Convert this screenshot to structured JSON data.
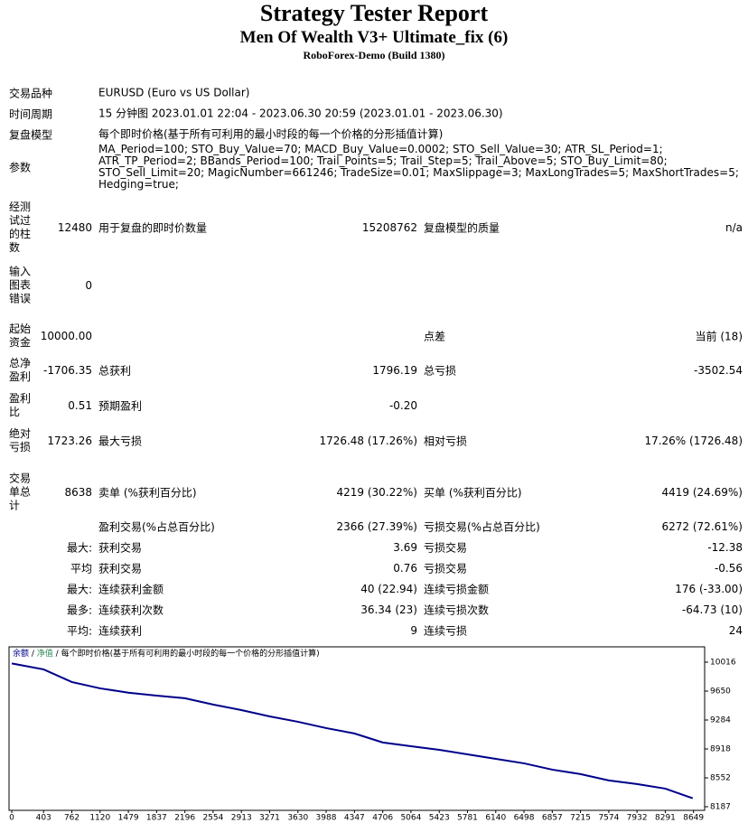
{
  "header": {
    "title": "Strategy Tester Report",
    "subtitle": "Men Of Wealth V3+ Ultimate_fix (6)",
    "build": "RoboForex-Demo (Build 1380)"
  },
  "info": [
    {
      "label": "交易品种",
      "value": "EURUSD (Euro vs US Dollar)"
    },
    {
      "label": "时间周期",
      "value": "15 分钟图 2023.01.01 22:04 - 2023.06.30 20:59 (2023.01.01 - 2023.06.30)"
    },
    {
      "label": "复盘模型",
      "value": "每个即时价格(基于所有可利用的最小时段的每一个价格的分形插值计算)"
    },
    {
      "label": "参数",
      "value": "MA_Period=100; STO_Buy_Value=70; MACD_Buy_Value=0.0002; STO_Sell_Value=30; ATR_SL_Period=1; ATR_TP_Period=2; BBands_Period=100; Trail_Points=5; Trail_Step=5; Trail_Above=5; STO_Buy_Limit=80; STO_Sell_Limit=20; MagicNumber=661246; TradeSize=0.01; MaxSlippage=3; MaxLongTrades=5; MaxShortTrades=5; Hedging=true;"
    }
  ],
  "stats": [
    {
      "label1": "经测试过的柱数",
      "value1": "12480",
      "label2": "用于复盘的即时价数量",
      "value2": "15208762",
      "label3": "复盘模型的质量",
      "value3": "n/a"
    },
    {
      "label1": "输入图表错误",
      "value1": "0"
    },
    {
      "label1": "起始资金",
      "value1": "10000.00",
      "label3": "点差",
      "value3": "当前 (18)"
    },
    {
      "label1": "总净盈利",
      "value1": "-1706.35",
      "label2": "总获利",
      "value2": "1796.19",
      "label3": "总亏损",
      "value3": "-3502.54"
    },
    {
      "label1": "盈利比",
      "value1": "0.51",
      "label2": "预期盈利",
      "value2": "-0.20"
    },
    {
      "label1": "绝对亏损",
      "value1": "1723.26",
      "label2": "最大亏损",
      "value2": "1726.48 (17.26%)",
      "label3": "相对亏损",
      "value3": "17.26% (1726.48)"
    },
    {
      "label1": "交易单总计",
      "value1": "8638",
      "label2": "卖单 (%获利百分比)",
      "value2": "4219 (30.22%)",
      "label3": "买单 (%获利百分比)",
      "value3": "4419 (24.69%)"
    },
    {
      "label2": "盈利交易(%占总百分比)",
      "value2": "2366 (27.39%)",
      "label3": "亏损交易(%占总百分比)",
      "value3": "6272 (72.61%)"
    },
    {
      "prefix": "最大:",
      "label2": "获利交易",
      "value2": "3.69",
      "label3": "亏损交易",
      "value3": "-12.38"
    },
    {
      "prefix": "平均",
      "label2": "获利交易",
      "value2": "0.76",
      "label3": "亏损交易",
      "value3": "-0.56"
    },
    {
      "prefix": "最大:",
      "label2": "连续获利金额",
      "value2": "40 (22.94)",
      "label3": "连续亏损金额",
      "value3": "176 (-33.00)"
    },
    {
      "prefix": "最多:",
      "label2": "连续获利次数",
      "value2": "36.34 (23)",
      "label3": "连续亏损次数",
      "value3": "-64.73 (10)"
    },
    {
      "prefix": "平均:",
      "label2": "连续获利",
      "value2": "9",
      "label3": "连续亏损",
      "value3": "24"
    }
  ],
  "chart_data": {
    "type": "line",
    "title": "每个即时价格(基于所有可利用的最小时段的每一个价格的分形插值计算)",
    "x": [
      0,
      403,
      762,
      1120,
      1479,
      1837,
      2196,
      2554,
      2913,
      3271,
      3630,
      3988,
      4347,
      4706,
      5064,
      5423,
      5781,
      6140,
      6498,
      6857,
      7215,
      7574,
      7932,
      8291,
      8638
    ],
    "series": [
      {
        "name": "余额",
        "color": "#00008b",
        "values": [
          10000,
          9925,
          9765,
          9685,
          9630,
          9593,
          9560,
          9480,
          9410,
          9330,
          9262,
          9182,
          9114,
          9000,
          8953,
          8907,
          8850,
          8793,
          8736,
          8656,
          8600,
          8520,
          8474,
          8416,
          8294
        ]
      },
      {
        "name": "净值",
        "color": "#2e8b57",
        "values": [
          9995,
          9920,
          9760,
          9682,
          9626,
          9590,
          9556,
          9477,
          9406,
          9327,
          9258,
          9178,
          9110,
          8995,
          8948,
          8904,
          8846,
          8790,
          8733,
          8652,
          8597,
          8516,
          8470,
          8412,
          8290
        ]
      }
    ],
    "xlim": [
      -35,
      8790
    ],
    "ylim": [
      8141,
      10210
    ],
    "xticks": [
      0,
      403,
      762,
      1120,
      1479,
      1837,
      2196,
      2554,
      2913,
      3271,
      3630,
      3988,
      4347,
      4706,
      5064,
      5423,
      5781,
      6140,
      6498,
      6857,
      7215,
      7574,
      7932,
      8291,
      8649
    ],
    "yticks": [
      8187,
      8552,
      8918,
      9284,
      9650,
      10016
    ]
  }
}
